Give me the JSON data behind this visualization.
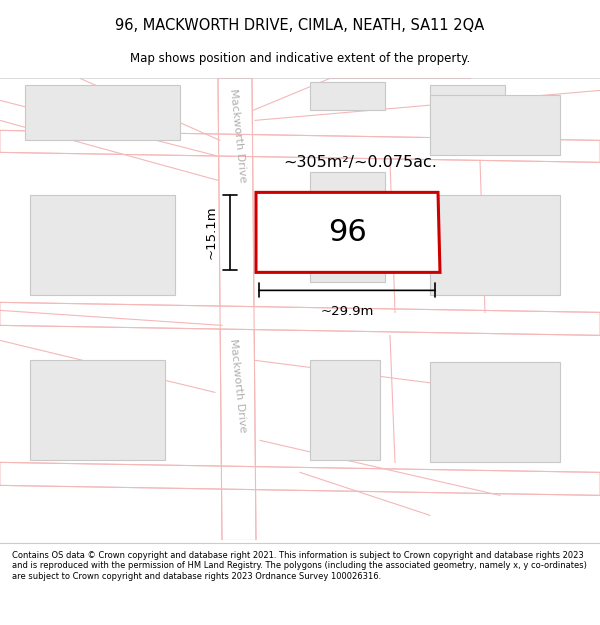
{
  "title": "96, MACKWORTH DRIVE, CIMLA, NEATH, SA11 2QA",
  "subtitle": "Map shows position and indicative extent of the property.",
  "footer": "Contains OS data © Crown copyright and database right 2021. This information is subject to Crown copyright and database rights 2023 and is reproduced with the permission of HM Land Registry. The polygons (including the associated geometry, namely x, y co-ordinates) are subject to Crown copyright and database rights 2023 Ordnance Survey 100026316.",
  "road_color": "#f4b8b8",
  "building_fill": "#e8e8e8",
  "building_edge": "#c8c8c8",
  "plot_color": "#cc0000",
  "plot_label": "96",
  "area_text": "~305m²/~0.075ac.",
  "width_text": "~29.9m",
  "height_text": "~15.1m",
  "road_label": "Mackworth Drive",
  "road_label2": "Mackworth Drive"
}
